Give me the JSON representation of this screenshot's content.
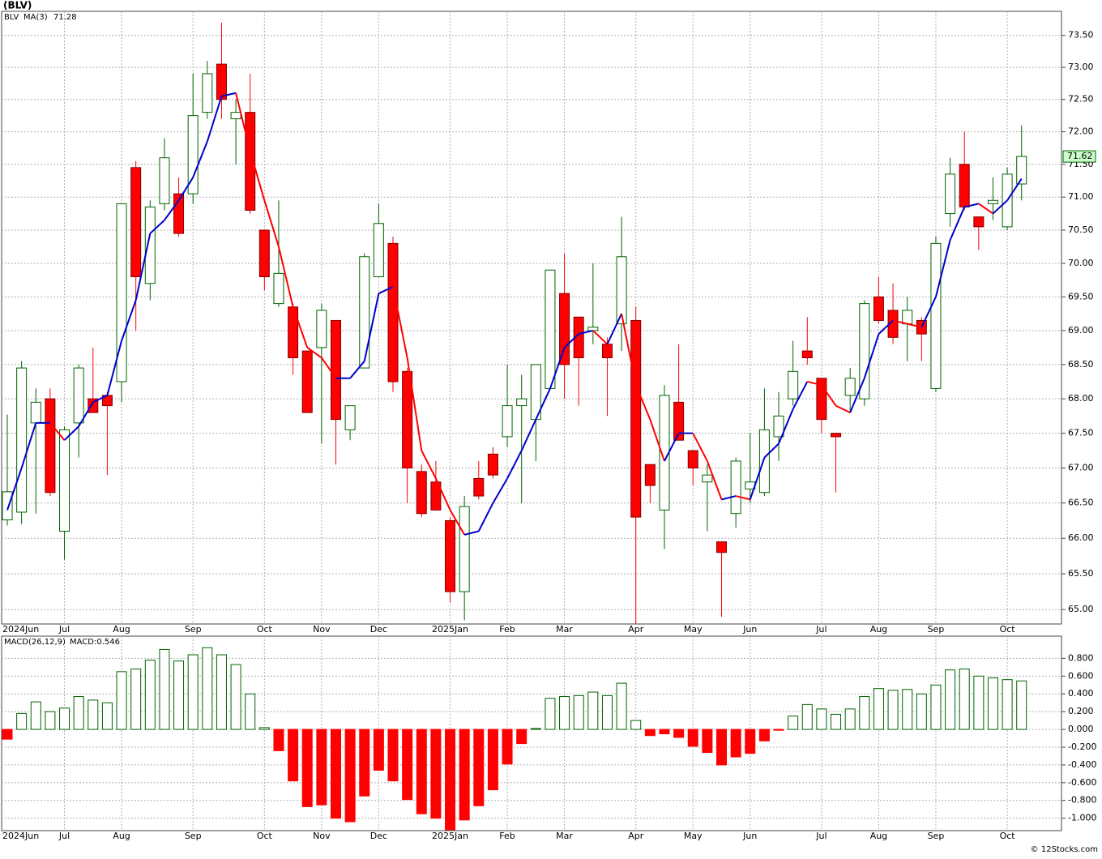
{
  "chart_data": [
    {
      "type": "candlestick",
      "title": "(BLV)",
      "name": "BLV",
      "color_up": "#006400",
      "color_down": "#ff0000",
      "categories": [
        "2024Jun",
        null,
        null,
        null,
        "Jul",
        null,
        null,
        null,
        "Aug",
        null,
        null,
        null,
        null,
        "Sep",
        null,
        null,
        null,
        null,
        "Oct",
        null,
        null,
        null,
        "Nov",
        null,
        null,
        null,
        "Dec",
        null,
        null,
        null,
        null,
        "2025Jan",
        null,
        null,
        null,
        "Feb",
        null,
        null,
        null,
        "Mar",
        null,
        null,
        null,
        null,
        "Apr",
        null,
        null,
        null,
        "May",
        null,
        null,
        null,
        "Jun",
        null,
        null,
        null,
        null,
        "Jul",
        null,
        null,
        null,
        "Aug",
        null,
        null,
        null,
        "Sep",
        null,
        null,
        null,
        null,
        "Oct",
        null
      ],
      "open": [
        66.26,
        66.37,
        67.65,
        68.0,
        66.1,
        67.65,
        68.0,
        68.05,
        68.25,
        71.45,
        69.7,
        70.9,
        71.05,
        71.05,
        72.3,
        73.05,
        72.2,
        72.3,
        70.5,
        69.4,
        69.35,
        68.7,
        68.75,
        69.15,
        67.55,
        68.45,
        69.8,
        70.3,
        68.4,
        66.95,
        66.8,
        66.25,
        65.25,
        66.85,
        67.2,
        67.45,
        67.9,
        67.7,
        68.15,
        69.55,
        69.2,
        69.0,
        68.8,
        69.1,
        69.15,
        67.05,
        66.4,
        67.95,
        67.25,
        66.8,
        65.95,
        66.35,
        66.7,
        66.65,
        67.45,
        68.0,
        68.7,
        68.3,
        67.5,
        68.05,
        68.0,
        69.5,
        69.3,
        69.1,
        69.15,
        68.15,
        70.75,
        71.5,
        70.7,
        70.9,
        70.55,
        71.2
      ],
      "high": [
        67.77,
        68.55,
        68.15,
        68.15,
        67.6,
        68.5,
        68.75,
        68.1,
        70.9,
        71.55,
        70.95,
        71.9,
        71.3,
        72.9,
        73.1,
        73.7,
        72.5,
        72.9,
        70.5,
        70.95,
        69.4,
        68.7,
        69.4,
        69.15,
        67.9,
        70.15,
        70.9,
        70.4,
        68.45,
        67.05,
        67.1,
        66.3,
        66.6,
        67.1,
        67.3,
        68.5,
        68.35,
        68.5,
        69.9,
        70.15,
        69.2,
        70.0,
        68.9,
        70.7,
        69.35,
        67.05,
        68.2,
        68.8,
        67.25,
        67.05,
        65.95,
        67.15,
        67.5,
        68.15,
        68.1,
        68.85,
        69.2,
        68.3,
        67.5,
        68.45,
        69.45,
        69.8,
        69.7,
        69.5,
        69.2,
        70.4,
        71.6,
        72.0,
        70.7,
        71.3,
        71.45,
        72.1
      ],
      "low": [
        66.18,
        66.2,
        66.35,
        66.6,
        65.7,
        67.15,
        67.8,
        66.9,
        67.95,
        69.0,
        69.45,
        70.8,
        70.4,
        70.9,
        72.2,
        72.2,
        71.5,
        70.75,
        69.6,
        69.35,
        68.35,
        67.8,
        67.35,
        67.05,
        67.4,
        68.45,
        69.8,
        68.1,
        66.5,
        66.3,
        66.4,
        65.1,
        64.85,
        66.55,
        66.85,
        67.3,
        66.5,
        67.1,
        68.15,
        68.0,
        67.9,
        68.8,
        67.75,
        68.7,
        64.8,
        66.5,
        65.85,
        67.4,
        66.75,
        66.1,
        64.9,
        66.15,
        66.5,
        66.6,
        67.1,
        67.9,
        68.5,
        67.5,
        66.65,
        67.8,
        67.9,
        69.1,
        68.8,
        68.55,
        68.55,
        68.1,
        70.55,
        70.8,
        70.2,
        70.65,
        70.5,
        70.95
      ],
      "close": [
        66.66,
        68.45,
        67.95,
        66.65,
        67.55,
        68.45,
        67.8,
        67.9,
        70.9,
        69.8,
        70.85,
        71.6,
        70.45,
        72.25,
        72.9,
        72.5,
        72.3,
        70.8,
        69.8,
        69.85,
        68.6,
        67.8,
        69.3,
        67.7,
        67.9,
        70.1,
        70.6,
        68.25,
        67.0,
        66.35,
        66.4,
        65.25,
        66.45,
        66.6,
        66.9,
        67.9,
        68.0,
        68.5,
        69.9,
        68.5,
        68.6,
        69.05,
        68.6,
        70.1,
        66.3,
        66.75,
        68.05,
        67.4,
        67.0,
        66.9,
        65.8,
        67.1,
        66.8,
        67.55,
        67.75,
        68.4,
        68.6,
        67.7,
        67.45,
        68.3,
        69.4,
        69.15,
        68.9,
        69.3,
        68.95,
        70.3,
        71.35,
        70.85,
        70.55,
        70.95,
        71.35,
        71.62
      ],
      "series": [
        {
          "name": "MA(3)",
          "color": "#0000cc",
          "down_color": "#ff0000",
          "values": [
            66.4,
            67.0,
            67.65,
            67.65,
            67.4,
            67.6,
            67.95,
            68.05,
            68.85,
            69.45,
            70.45,
            70.65,
            70.95,
            71.3,
            71.85,
            72.55,
            72.6,
            71.7,
            70.95,
            70.25,
            69.35,
            68.75,
            68.6,
            68.3,
            68.3,
            68.55,
            69.55,
            69.65,
            68.6,
            67.25,
            66.85,
            66.4,
            66.05,
            66.1,
            66.5,
            66.85,
            67.25,
            67.7,
            68.15,
            68.75,
            68.95,
            69.0,
            68.8,
            69.25,
            68.2,
            67.7,
            67.1,
            67.5,
            67.5,
            67.1,
            66.55,
            66.6,
            66.55,
            67.15,
            67.35,
            67.85,
            68.25,
            68.2,
            67.9,
            67.8,
            68.3,
            68.95,
            69.15,
            69.1,
            69.05,
            69.5,
            70.35,
            70.85,
            70.9,
            70.75,
            70.95,
            71.28
          ]
        }
      ],
      "ylim": [
        64.8,
        73.88
      ],
      "log": true,
      "grid": true,
      "yticks": [
        {
          "value": 65.0,
          "label": "65.00"
        },
        {
          "value": 65.5,
          "label": "65.50"
        },
        {
          "value": 66.0,
          "label": "66.00"
        },
        {
          "value": 66.5,
          "label": "66.50"
        },
        {
          "value": 67.0,
          "label": "67.00"
        },
        {
          "value": 67.5,
          "label": "67.50"
        },
        {
          "value": 68.0,
          "label": "68.00"
        },
        {
          "value": 68.5,
          "label": "68.50"
        },
        {
          "value": 69.0,
          "label": "69.00"
        },
        {
          "value": 69.5,
          "label": "69.50"
        },
        {
          "value": 70.0,
          "label": "70.00"
        },
        {
          "value": 70.5,
          "label": "70.50"
        },
        {
          "value": 71.0,
          "label": "71.00"
        },
        {
          "value": 71.5,
          "label": "71.50"
        },
        {
          "value": 72.0,
          "label": "72.00"
        },
        {
          "value": 72.5,
          "label": "72.50"
        },
        {
          "value": 73.0,
          "label": "73.00"
        },
        {
          "value": 73.5,
          "label": "73.50"
        }
      ]
    },
    {
      "type": "bar",
      "name": "MACD(26,12,9)",
      "legend_value_label": "MACD:0.546",
      "color_up": "#006400",
      "color_down": "#ff0000",
      "categories": [
        "2024Jun",
        null,
        null,
        null,
        "Jul",
        null,
        null,
        null,
        "Aug",
        null,
        null,
        null,
        null,
        "Sep",
        null,
        null,
        null,
        null,
        "Oct",
        null,
        null,
        null,
        "Nov",
        null,
        null,
        null,
        "Dec",
        null,
        null,
        null,
        null,
        "2025Jan",
        null,
        null,
        null,
        "Feb",
        null,
        null,
        null,
        "Mar",
        null,
        null,
        null,
        null,
        "Apr",
        null,
        null,
        null,
        "May",
        null,
        null,
        null,
        "Jun",
        null,
        null,
        null,
        null,
        "Jul",
        null,
        null,
        null,
        "Aug",
        null,
        null,
        null,
        "Sep",
        null,
        null,
        null,
        null,
        "Oct",
        null
      ],
      "values": [
        -0.11,
        0.18,
        0.31,
        0.2,
        0.24,
        0.37,
        0.33,
        0.3,
        0.65,
        0.68,
        0.78,
        0.9,
        0.77,
        0.84,
        0.92,
        0.84,
        0.73,
        0.4,
        0.02,
        -0.24,
        -0.58,
        -0.87,
        -0.85,
        -1.0,
        -1.04,
        -0.75,
        -0.46,
        -0.58,
        -0.79,
        -0.95,
        -1.0,
        -1.13,
        -1.02,
        -0.86,
        -0.68,
        -0.39,
        -0.16,
        0.01,
        0.35,
        0.37,
        0.38,
        0.42,
        0.38,
        0.52,
        0.1,
        -0.07,
        -0.05,
        -0.09,
        -0.19,
        -0.26,
        -0.4,
        -0.31,
        -0.27,
        -0.13,
        -0.01,
        0.15,
        0.28,
        0.23,
        0.17,
        0.23,
        0.37,
        0.46,
        0.44,
        0.45,
        0.4,
        0.5,
        0.67,
        0.68,
        0.6,
        0.58,
        0.56,
        0.546
      ],
      "ylim": [
        -1.14,
        1.05
      ],
      "grid": true,
      "yticks": [
        {
          "value": -1.0,
          "label": "-1.000"
        },
        {
          "value": -0.8,
          "label": "-0.800"
        },
        {
          "value": -0.6,
          "label": "-0.600"
        },
        {
          "value": -0.4,
          "label": "-0.400"
        },
        {
          "value": -0.2,
          "label": "-0.200"
        },
        {
          "value": 0,
          "label": "0.000"
        },
        {
          "value": 0.2,
          "label": "0.200"
        },
        {
          "value": 0.4,
          "label": "0.400"
        },
        {
          "value": 0.6,
          "label": "0.600"
        },
        {
          "value": 0.8,
          "label": "0.800"
        }
      ]
    }
  ],
  "footer": "© 12Stocks.com"
}
